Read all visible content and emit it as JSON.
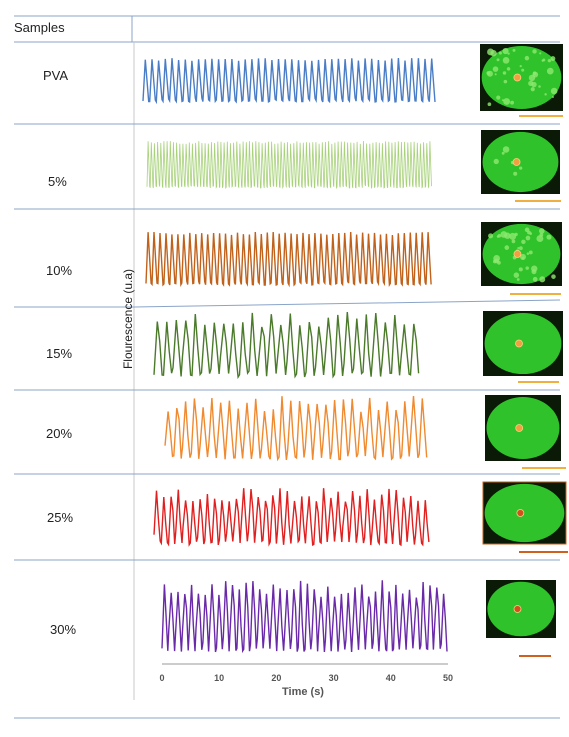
{
  "table": {
    "header": "Samples",
    "rows": [
      {
        "label": "PVA",
        "color": "#4a7dc6",
        "scale_bar_color": "#f0b040"
      },
      {
        "label": "5%",
        "color": "#a8d27a",
        "scale_bar_color": "#f0b040"
      },
      {
        "label": "10%",
        "color": "#c0621b",
        "scale_bar_color": "#f0b040"
      },
      {
        "label": "15%",
        "color": "#4a7a2a",
        "scale_bar_color": "#f0b040"
      },
      {
        "label": "20%",
        "color": "#f08a30",
        "scale_bar_color": "#f0b040"
      },
      {
        "label": "25%",
        "color": "#e02020",
        "scale_bar_color": "#d06020"
      },
      {
        "label": "30%",
        "color": "#6a2aa8",
        "scale_bar_color": "#d06020"
      }
    ]
  },
  "chart_data": {
    "type": "line",
    "ylabel": "Flourescence (u.a)",
    "xlabel": "Time (s)",
    "xlim": [
      0,
      50
    ],
    "x_ticks": [
      0,
      10,
      20,
      30,
      40,
      50
    ],
    "series": [
      {
        "name": "PVA",
        "peaks": 44
      },
      {
        "name": "5%",
        "peaks": 90
      },
      {
        "name": "10%",
        "peaks": 48
      },
      {
        "name": "15%",
        "peaks": 28
      },
      {
        "name": "20%",
        "peaks": 30
      },
      {
        "name": "25%",
        "peaks": 38
      },
      {
        "name": "30%",
        "peaks": 42
      }
    ]
  }
}
